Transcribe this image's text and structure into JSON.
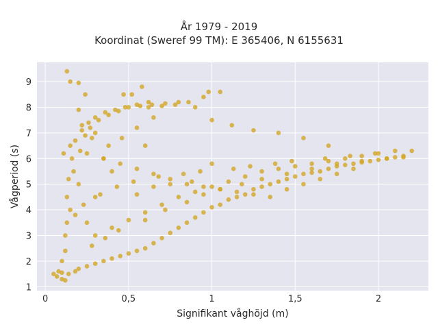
{
  "chart_data": {
    "type": "scatter",
    "title": "År 1979 - 2019",
    "subtitle": "Koordinat (Sweref 99 TM): E 365406, N 6155631",
    "xlabel": "Signifikant våghöjd (m)",
    "ylabel": "Vågperiod (s)",
    "xlim": [
      -0.05,
      2.3
    ],
    "ylim": [
      0.85,
      9.75
    ],
    "xticks": [
      {
        "value": 0,
        "label": "0"
      },
      {
        "value": 0.5,
        "label": "0,5"
      },
      {
        "value": 1,
        "label": "1"
      },
      {
        "value": 1.5,
        "label": "1,5"
      },
      {
        "value": 2,
        "label": "2"
      }
    ],
    "yticks": [
      {
        "value": 1,
        "label": "1"
      },
      {
        "value": 2,
        "label": "2"
      },
      {
        "value": 3,
        "label": "3"
      },
      {
        "value": 4,
        "label": "4"
      },
      {
        "value": 5,
        "label": "5"
      },
      {
        "value": 6,
        "label": "6"
      },
      {
        "value": 7,
        "label": "7"
      },
      {
        "value": 8,
        "label": "8"
      },
      {
        "value": 9,
        "label": "9"
      }
    ],
    "grid": true,
    "background": "#e5e5ef",
    "marker_color": "#d4a521",
    "series": [
      {
        "x": [
          0.1,
          0.1,
          0.12,
          0.12,
          0.14,
          0.15,
          0.15,
          0.18,
          0.2,
          0.2,
          0.22,
          0.25,
          0.25,
          0.28,
          0.3,
          0.3,
          0.35,
          0.35,
          0.4,
          0.4,
          0.45,
          0.5,
          0.55,
          0.6,
          0.6,
          0.65,
          0.7,
          0.75,
          0.8,
          0.85,
          0.9,
          0.95,
          1.0,
          1.0,
          1.05,
          1.1,
          1.15,
          1.2,
          1.25,
          1.3,
          1.35,
          1.4,
          1.45,
          1.5,
          1.55,
          1.6,
          1.65,
          1.7,
          1.75,
          1.8,
          1.85,
          1.9,
          1.95,
          2.0,
          2.05,
          2.1,
          2.15,
          2.2,
          0.05,
          0.07,
          0.08,
          0.1,
          0.12,
          0.13,
          0.14,
          0.16,
          0.18,
          0.22,
          0.26,
          0.3,
          0.36,
          0.42,
          0.48,
          0.55,
          0.62,
          0.7,
          0.78,
          0.86,
          0.95,
          1.05,
          0.13,
          0.17,
          0.21,
          0.24,
          0.27,
          0.32,
          0.38,
          0.44,
          0.5,
          0.57,
          0.64,
          0.72,
          0.8,
          0.9,
          1.0,
          1.12,
          1.25,
          1.4,
          1.55,
          1.7,
          0.13,
          0.15,
          0.2,
          0.24,
          0.3,
          0.38,
          0.46,
          0.55,
          0.65,
          0.11,
          0.2,
          0.52,
          0.58,
          0.98,
          0.47,
          0.62,
          0.28,
          0.36,
          0.44,
          0.6,
          0.72,
          0.85,
          0.95,
          1.05,
          1.18,
          1.3,
          1.45,
          1.6,
          1.75,
          1.9,
          2.05,
          2.15,
          0.18,
          0.23,
          0.33,
          0.43,
          0.53,
          0.68,
          0.83,
          0.93,
          1.13,
          1.23,
          1.38,
          1.48,
          1.68,
          1.83,
          1.98,
          0.55,
          0.65,
          0.75,
          0.88,
          0.3,
          0.4,
          0.5,
          0.6,
          0.7,
          0.8,
          0.9,
          1.0,
          1.1,
          1.2,
          1.3,
          1.4,
          1.5,
          1.6,
          1.7,
          1.8,
          1.9,
          2.0,
          2.1,
          0.25,
          0.35,
          0.45,
          0.55,
          0.65,
          0.75,
          0.85,
          0.95,
          1.05,
          1.15,
          1.25,
          1.35,
          1.45,
          1.55,
          1.65,
          1.75,
          1.85
        ],
        "y": [
          1.3,
          2.0,
          1.25,
          3.0,
          1.5,
          4.0,
          6.5,
          1.6,
          1.7,
          5.0,
          7.3,
          1.8,
          3.5,
          6.8,
          1.9,
          4.5,
          2.0,
          6.0,
          2.1,
          5.5,
          2.2,
          2.3,
          2.4,
          2.5,
          6.5,
          2.7,
          2.9,
          3.1,
          3.3,
          3.5,
          3.7,
          3.9,
          4.1,
          5.8,
          4.2,
          4.4,
          4.5,
          4.6,
          4.8,
          4.9,
          5.0,
          5.1,
          5.2,
          5.3,
          5.4,
          5.45,
          5.5,
          5.6,
          5.7,
          5.75,
          5.8,
          5.85,
          5.9,
          5.95,
          6.0,
          6.05,
          6.1,
          6.3,
          1.5,
          1.4,
          1.6,
          1.55,
          2.4,
          3.5,
          5.2,
          6.0,
          6.7,
          7.1,
          7.4,
          7.6,
          7.8,
          7.9,
          8.0,
          8.1,
          8.0,
          8.05,
          8.1,
          8.2,
          8.4,
          8.6,
          4.5,
          5.5,
          6.3,
          6.9,
          7.2,
          7.5,
          7.7,
          7.85,
          8.0,
          8.05,
          8.1,
          8.15,
          8.2,
          8.0,
          7.5,
          7.3,
          7.1,
          7.0,
          6.8,
          6.5,
          9.4,
          9.0,
          8.95,
          8.5,
          7.0,
          6.5,
          6.8,
          7.2,
          7.6,
          6.2,
          7.9,
          8.5,
          8.8,
          8.6,
          8.5,
          8.2,
          2.6,
          2.9,
          3.2,
          3.6,
          4.0,
          4.3,
          4.6,
          4.8,
          5.0,
          5.2,
          5.4,
          5.6,
          5.8,
          5.9,
          6.0,
          6.05,
          3.8,
          4.2,
          4.6,
          4.9,
          5.1,
          5.3,
          5.4,
          5.5,
          5.6,
          5.7,
          5.8,
          5.9,
          6.0,
          6.1,
          6.2,
          4.6,
          4.9,
          5.0,
          5.1,
          3.0,
          3.3,
          3.6,
          3.9,
          4.2,
          4.5,
          4.7,
          4.9,
          5.1,
          5.3,
          5.5,
          5.6,
          5.7,
          5.8,
          5.9,
          6.0,
          6.1,
          6.2,
          6.3,
          6.2,
          6.0,
          5.8,
          5.6,
          5.4,
          5.2,
          5.0,
          4.9,
          4.8,
          4.7,
          4.6,
          4.5,
          4.8,
          5.0,
          5.2,
          5.4,
          5.6
        ]
      }
    ]
  }
}
